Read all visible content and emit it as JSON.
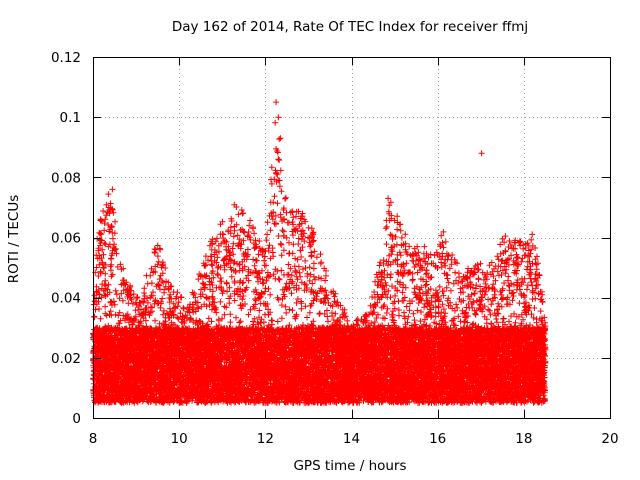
{
  "chart_data": {
    "type": "scatter",
    "title": "Day 162 of 2014, Rate Of TEC Index for receiver ffmj",
    "xlabel": "GPS time / hours",
    "ylabel": "ROTI / TECUs",
    "xlim": [
      8,
      20
    ],
    "ylim": [
      0,
      0.12
    ],
    "x_ticks": [
      8,
      10,
      12,
      14,
      16,
      18,
      20
    ],
    "x_tick_labels": [
      "8",
      "10",
      "12",
      "14",
      "16",
      "18",
      "20"
    ],
    "y_ticks": [
      0,
      0.02,
      0.04,
      0.06,
      0.08,
      0.1,
      0.12
    ],
    "y_tick_labels": [
      "0",
      "0.02",
      "0.04",
      "0.06",
      "0.08",
      "0.1",
      "0.12"
    ],
    "grid": true,
    "marker": "+",
    "color": "#ff0000",
    "series": [
      {
        "name": "ROTI",
        "x_range": [
          8.0,
          18.5
        ],
        "density_points_per_hour": 1500,
        "typical_range": [
          0.005,
          0.03
        ],
        "envelope": [
          {
            "x": 8.0,
            "y": 0.035
          },
          {
            "x": 8.1,
            "y": 0.065
          },
          {
            "x": 8.4,
            "y": 0.076
          },
          {
            "x": 8.7,
            "y": 0.05
          },
          {
            "x": 9.0,
            "y": 0.04
          },
          {
            "x": 9.5,
            "y": 0.059
          },
          {
            "x": 9.8,
            "y": 0.045
          },
          {
            "x": 10.2,
            "y": 0.038
          },
          {
            "x": 10.8,
            "y": 0.061
          },
          {
            "x": 11.3,
            "y": 0.072
          },
          {
            "x": 11.6,
            "y": 0.068
          },
          {
            "x": 12.0,
            "y": 0.055
          },
          {
            "x": 12.25,
            "y": 0.104
          },
          {
            "x": 12.5,
            "y": 0.07
          },
          {
            "x": 13.0,
            "y": 0.068
          },
          {
            "x": 13.5,
            "y": 0.045
          },
          {
            "x": 14.0,
            "y": 0.032
          },
          {
            "x": 14.4,
            "y": 0.035
          },
          {
            "x": 14.7,
            "y": 0.058
          },
          {
            "x": 14.9,
            "y": 0.073
          },
          {
            "x": 15.3,
            "y": 0.06
          },
          {
            "x": 16.0,
            "y": 0.055
          },
          {
            "x": 16.1,
            "y": 0.063
          },
          {
            "x": 16.5,
            "y": 0.05
          },
          {
            "x": 17.2,
            "y": 0.052
          },
          {
            "x": 17.6,
            "y": 0.062
          },
          {
            "x": 18.0,
            "y": 0.058
          },
          {
            "x": 18.2,
            "y": 0.064
          },
          {
            "x": 18.5,
            "y": 0.035
          }
        ],
        "notable_points": [
          {
            "x": 12.25,
            "y": 0.105
          },
          {
            "x": 12.3,
            "y": 0.1
          },
          {
            "x": 12.35,
            "y": 0.093
          },
          {
            "x": 12.3,
            "y": 0.086
          },
          {
            "x": 17.02,
            "y": 0.088
          },
          {
            "x": 12.3,
            "y": 0.079
          },
          {
            "x": 8.45,
            "y": 0.076
          },
          {
            "x": 14.85,
            "y": 0.073
          }
        ]
      }
    ]
  }
}
